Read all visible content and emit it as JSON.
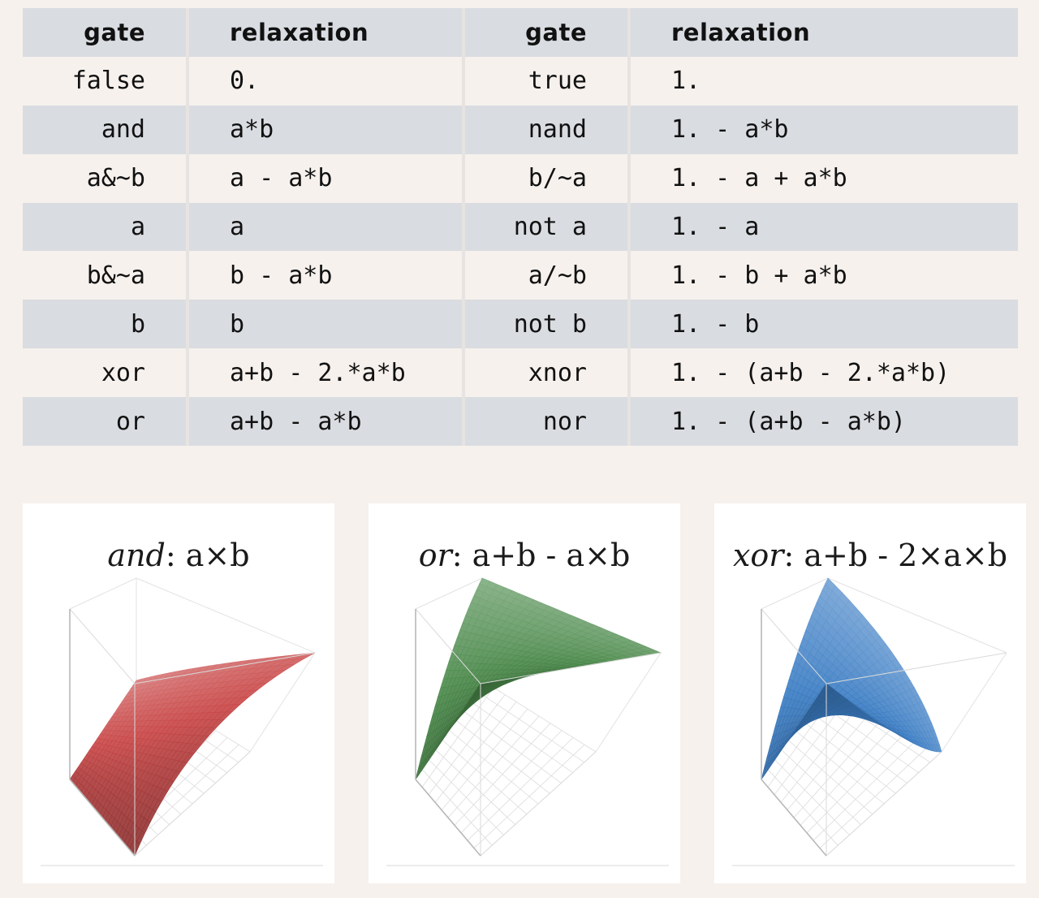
{
  "table": {
    "headers": [
      "gate",
      "relaxation",
      "gate",
      "relaxation"
    ],
    "rows": [
      [
        "false",
        "0.",
        "true",
        "1."
      ],
      [
        "and",
        "a*b",
        "nand",
        "1. - a*b"
      ],
      [
        "a&~b",
        "a - a*b",
        "b/~a",
        "1. - a + a*b"
      ],
      [
        "a",
        "a",
        "not a",
        "1. - a"
      ],
      [
        "b&~a",
        "b - a*b",
        "a/~b",
        "1. - b + a*b"
      ],
      [
        "b",
        "b",
        "not b",
        "1. - b"
      ],
      [
        "xor",
        "a+b - 2.*a*b",
        "xnor",
        "1. - (a+b - 2.*a*b)"
      ],
      [
        "or",
        "a+b - a*b",
        "nor",
        "1. - (a+b - a*b)"
      ]
    ]
  },
  "plots": [
    {
      "gate": "and",
      "sep": ":",
      "expr": "a×b",
      "color": "#c94848"
    },
    {
      "gate": "or",
      "sep": ":",
      "expr": "a+b - a×b",
      "color": "#4c8a4c"
    },
    {
      "gate": "xor",
      "sep": ":",
      "expr": "a+b - 2×a×b",
      "color": "#3d7ec4"
    }
  ]
}
